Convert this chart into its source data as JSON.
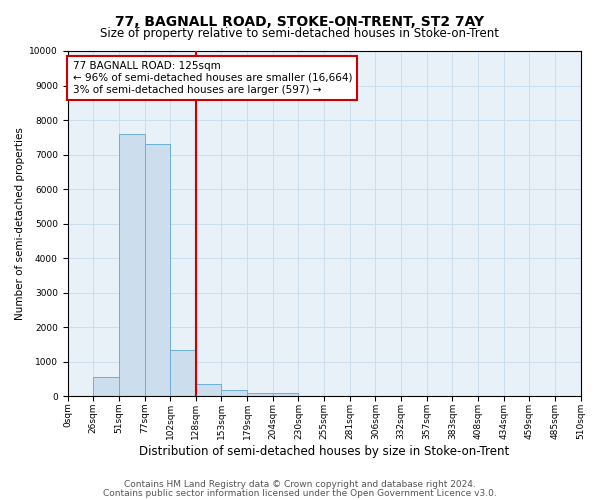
{
  "title": "77, BAGNALL ROAD, STOKE-ON-TRENT, ST2 7AY",
  "subtitle": "Size of property relative to semi-detached houses in Stoke-on-Trent",
  "xlabel": "Distribution of semi-detached houses by size in Stoke-on-Trent",
  "ylabel": "Number of semi-detached properties",
  "footer_line1": "Contains HM Land Registry data © Crown copyright and database right 2024.",
  "footer_line2": "Contains public sector information licensed under the Open Government Licence v3.0.",
  "bar_left_edges": [
    0,
    25.5,
    51,
    76.5,
    102,
    127.5,
    153,
    178.5,
    204,
    229.5,
    255,
    280.5,
    306,
    331.5,
    357,
    382.5,
    408,
    433.5,
    459,
    484.5
  ],
  "bar_heights": [
    0,
    550,
    7600,
    7300,
    1350,
    350,
    175,
    100,
    100,
    0,
    0,
    0,
    0,
    0,
    0,
    0,
    0,
    0,
    0,
    0
  ],
  "bar_width": 25.5,
  "bar_color": "#ccdded",
  "bar_edge_color": "#6aafd6",
  "property_line_x": 127.5,
  "annotation_line1": "77 BAGNALL ROAD: 125sqm",
  "annotation_line2": "← 96% of semi-detached houses are smaller (16,664)",
  "annotation_line3": "3% of semi-detached houses are larger (597) →",
  "annotation_box_facecolor": "#ffffff",
  "annotation_box_edgecolor": "#cc0000",
  "red_line_color": "#cc0000",
  "ylim": [
    0,
    10000
  ],
  "xlim": [
    0,
    510
  ],
  "tick_labels": [
    "0sqm",
    "26sqm",
    "51sqm",
    "77sqm",
    "102sqm",
    "128sqm",
    "153sqm",
    "179sqm",
    "204sqm",
    "230sqm",
    "255sqm",
    "281sqm",
    "306sqm",
    "332sqm",
    "357sqm",
    "383sqm",
    "408sqm",
    "434sqm",
    "459sqm",
    "485sqm",
    "510sqm"
  ],
  "tick_positions": [
    0,
    25.5,
    51,
    76.5,
    102,
    127.5,
    153,
    178.5,
    204,
    229.5,
    255,
    280.5,
    306,
    331.5,
    357,
    382.5,
    408,
    433.5,
    459,
    484.5,
    510
  ],
  "title_fontsize": 10,
  "subtitle_fontsize": 8.5,
  "xlabel_fontsize": 8.5,
  "ylabel_fontsize": 7.5,
  "tick_fontsize": 6.5,
  "annotation_fontsize": 7.5,
  "footer_fontsize": 6.5
}
